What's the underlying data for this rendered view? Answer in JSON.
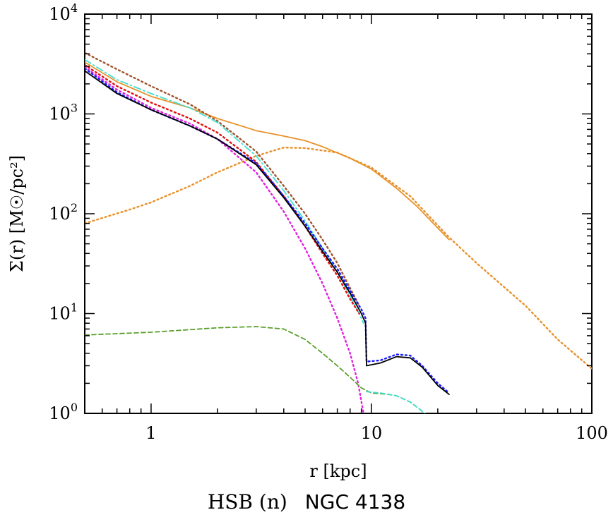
{
  "chart_data": {
    "type": "line",
    "xlabel": "r [kpc]",
    "ylabel": "Σ(r) [M☉/pc²]",
    "xscale": "log",
    "yscale": "log",
    "xlim": [
      0.5,
      100
    ],
    "ylim": [
      1,
      10000
    ],
    "x_ticks": [
      {
        "value": 1,
        "label": "1"
      },
      {
        "value": 10,
        "label": "10"
      },
      {
        "value": 100,
        "label": "100"
      }
    ],
    "y_ticks": [
      {
        "value": 1,
        "base": "10",
        "exp": "0"
      },
      {
        "value": 10,
        "base": "10",
        "exp": "1"
      },
      {
        "value": 100,
        "base": "10",
        "exp": "2"
      },
      {
        "value": 1000,
        "base": "10",
        "exp": "3"
      },
      {
        "value": 10000,
        "base": "10",
        "exp": "4"
      }
    ],
    "grid": false,
    "series": [
      {
        "color": "#e8912a",
        "style": "solid",
        "points": [
          [
            0.5,
            3300
          ],
          [
            0.7,
            2100
          ],
          [
            1,
            1500
          ],
          [
            1.5,
            1150
          ],
          [
            2,
            900
          ],
          [
            3,
            680
          ],
          [
            4,
            600
          ],
          [
            5,
            540
          ],
          [
            6,
            470
          ],
          [
            8,
            360
          ],
          [
            10,
            280
          ],
          [
            13,
            180
          ],
          [
            16,
            120
          ],
          [
            20,
            72
          ],
          [
            22.5,
            55
          ]
        ]
      },
      {
        "color": "#e8912a",
        "style": "dotted",
        "points": [
          [
            0.5,
            80
          ],
          [
            0.8,
            110
          ],
          [
            1,
            130
          ],
          [
            1.5,
            190
          ],
          [
            2,
            260
          ],
          [
            3,
            380
          ],
          [
            4,
            460
          ],
          [
            5,
            455
          ],
          [
            7,
            410
          ],
          [
            10,
            290
          ],
          [
            15,
            150
          ],
          [
            22.5,
            58
          ],
          [
            30,
            32
          ],
          [
            50,
            12
          ],
          [
            70,
            5.5
          ],
          [
            100,
            2.8
          ]
        ]
      },
      {
        "color": "#a0522d",
        "style": "dotted",
        "points": [
          [
            0.5,
            4100
          ],
          [
            0.7,
            2800
          ],
          [
            1,
            1900
          ],
          [
            1.5,
            1250
          ],
          [
            2,
            850
          ],
          [
            3,
            420
          ],
          [
            4,
            190
          ],
          [
            5,
            100
          ],
          [
            6,
            55
          ],
          [
            7,
            32
          ],
          [
            8,
            18
          ],
          [
            8.8,
            12
          ]
        ]
      },
      {
        "color": "#40e0d0",
        "style": "dashdot",
        "points": [
          [
            0.5,
            3500
          ],
          [
            0.7,
            2200
          ],
          [
            1,
            1600
          ],
          [
            1.5,
            1150
          ],
          [
            2,
            820
          ],
          [
            3,
            380
          ],
          [
            4,
            170
          ],
          [
            5,
            85
          ],
          [
            6,
            45
          ],
          [
            7,
            26
          ],
          [
            8,
            15
          ],
          [
            8.8,
            10
          ],
          [
            9.2,
            8
          ]
        ]
      },
      {
        "color": "#e01010",
        "style": "dotted",
        "points": [
          [
            0.5,
            3100
          ],
          [
            0.7,
            1900
          ],
          [
            1,
            1300
          ],
          [
            1.5,
            900
          ],
          [
            2,
            650
          ],
          [
            3,
            330
          ],
          [
            4,
            150
          ],
          [
            5,
            75
          ],
          [
            6,
            40
          ],
          [
            7,
            24
          ],
          [
            8,
            14
          ],
          [
            8.8,
            10
          ]
        ]
      },
      {
        "color": "#e020e0",
        "style": "dotted",
        "points": [
          [
            0.5,
            2950
          ],
          [
            0.7,
            1750
          ],
          [
            1,
            1150
          ],
          [
            1.5,
            800
          ],
          [
            2,
            560
          ],
          [
            3,
            260
          ],
          [
            4,
            105
          ],
          [
            5,
            45
          ],
          [
            6,
            20
          ],
          [
            7,
            9
          ],
          [
            8,
            4
          ],
          [
            8.7,
            2
          ],
          [
            9.2,
            1
          ]
        ]
      },
      {
        "color": "#1a1aff",
        "style": "dotted",
        "points": [
          [
            0.5,
            2850
          ],
          [
            0.7,
            1650
          ],
          [
            1,
            1100
          ],
          [
            1.5,
            760
          ],
          [
            2,
            560
          ],
          [
            3,
            320
          ],
          [
            4,
            150
          ],
          [
            5,
            80
          ],
          [
            6,
            45
          ],
          [
            7,
            28
          ],
          [
            8,
            17
          ],
          [
            9,
            11
          ],
          [
            9.4,
            9
          ],
          [
            9.5,
            3.3
          ],
          [
            11,
            3.4
          ],
          [
            13,
            3.9
          ],
          [
            15,
            3.8
          ],
          [
            17,
            3
          ],
          [
            20,
            2
          ],
          [
            22.5,
            1.6
          ]
        ]
      },
      {
        "color": "#000000",
        "style": "solid",
        "points": [
          [
            0.5,
            2700
          ],
          [
            0.7,
            1600
          ],
          [
            1,
            1100
          ],
          [
            1.5,
            760
          ],
          [
            2,
            560
          ],
          [
            3,
            310
          ],
          [
            4,
            145
          ],
          [
            5,
            75
          ],
          [
            6,
            42
          ],
          [
            7,
            26
          ],
          [
            8,
            16
          ],
          [
            9,
            10
          ],
          [
            9.4,
            8
          ],
          [
            9.5,
            3
          ],
          [
            11,
            3.2
          ],
          [
            13,
            3.7
          ],
          [
            15,
            3.6
          ],
          [
            17,
            2.9
          ],
          [
            20,
            1.9
          ],
          [
            22.5,
            1.55
          ]
        ]
      },
      {
        "color": "#5aa02c",
        "style": "dashed",
        "points": [
          [
            0.5,
            6.1
          ],
          [
            1,
            6.5
          ],
          [
            2,
            7.2
          ],
          [
            3,
            7.4
          ],
          [
            4,
            7
          ],
          [
            5,
            5.5
          ],
          [
            6,
            4
          ],
          [
            7,
            3
          ],
          [
            8,
            2.3
          ],
          [
            9,
            1.8
          ],
          [
            10,
            1.6
          ],
          [
            12,
            1.55
          ],
          [
            13,
            1.5
          ],
          [
            15,
            1.3
          ],
          [
            17,
            1.05
          ],
          [
            18,
            0.95
          ]
        ]
      },
      {
        "color": "#40e0d0",
        "style": "dashed",
        "points": [
          [
            9.5,
            1.65
          ],
          [
            11,
            1.6
          ],
          [
            13,
            1.5
          ],
          [
            15,
            1.3
          ],
          [
            17,
            1.05
          ],
          [
            18,
            0.95
          ]
        ]
      }
    ]
  },
  "caption": {
    "class_label": "HSB (n)",
    "galaxy_name": "NGC 4138"
  }
}
